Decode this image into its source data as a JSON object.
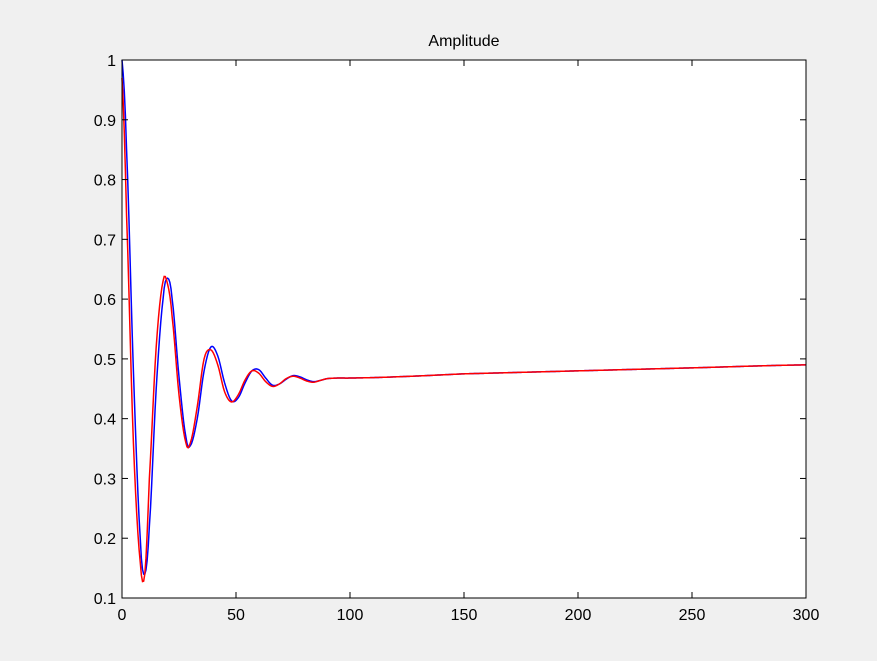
{
  "chart_data": {
    "type": "line",
    "title": "Amplitude",
    "xlabel": "",
    "ylabel": "",
    "xlim": [
      0,
      300
    ],
    "ylim": [
      0.1,
      1
    ],
    "grid": false,
    "x_ticks": [
      "0",
      "50",
      "100",
      "150",
      "200",
      "250",
      "300"
    ],
    "y_ticks": [
      "0.1",
      "0.2",
      "0.3",
      "0.4",
      "0.5",
      "0.6",
      "0.7",
      "0.8",
      "0.9",
      "1"
    ],
    "series": [
      {
        "color": "#0000ff",
        "style": "solid",
        "x": [
          0,
          2,
          5,
          8,
          10,
          12,
          15,
          18,
          20,
          22,
          25,
          28,
          30,
          33,
          36,
          39,
          42,
          45,
          48,
          51,
          54,
          57,
          60,
          63,
          66,
          69,
          72,
          75,
          78,
          81,
          84,
          87,
          90,
          95,
          100,
          120,
          150,
          200,
          250,
          300
        ],
        "y": [
          1.0,
          0.85,
          0.48,
          0.2,
          0.14,
          0.22,
          0.45,
          0.6,
          0.635,
          0.6,
          0.47,
          0.37,
          0.355,
          0.4,
          0.48,
          0.52,
          0.505,
          0.46,
          0.43,
          0.435,
          0.46,
          0.48,
          0.482,
          0.468,
          0.456,
          0.458,
          0.466,
          0.472,
          0.47,
          0.465,
          0.462,
          0.464,
          0.467,
          0.468,
          0.468,
          0.47,
          0.475,
          0.48,
          0.485,
          0.49
        ]
      },
      {
        "color": "#ff0000",
        "style": "solid",
        "x": [
          0,
          2,
          5,
          8,
          10,
          12,
          15,
          18,
          20,
          22,
          25,
          28,
          30,
          33,
          36,
          39,
          42,
          45,
          48,
          51,
          54,
          57,
          60,
          63,
          66,
          69,
          72,
          75,
          78,
          81,
          84,
          87,
          90,
          95,
          100,
          120,
          150,
          200,
          250,
          300
        ],
        "y": [
          0.97,
          0.74,
          0.36,
          0.16,
          0.14,
          0.3,
          0.52,
          0.63,
          0.625,
          0.57,
          0.44,
          0.36,
          0.36,
          0.42,
          0.5,
          0.515,
          0.49,
          0.445,
          0.428,
          0.44,
          0.465,
          0.48,
          0.476,
          0.462,
          0.454,
          0.458,
          0.467,
          0.471,
          0.468,
          0.463,
          0.461,
          0.464,
          0.467,
          0.468,
          0.468,
          0.47,
          0.475,
          0.48,
          0.485,
          0.49
        ]
      }
    ]
  }
}
